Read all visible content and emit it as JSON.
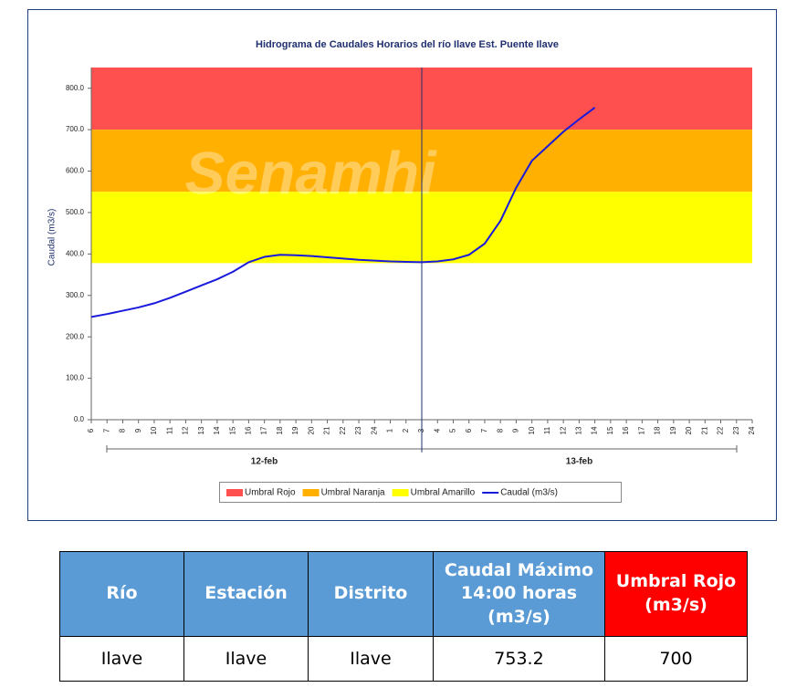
{
  "chart_data": {
    "type": "line",
    "title": "Hidrograma de Caudales Horarios del río Ilave Est. Puente  Ilave",
    "watermark": "Senamhi",
    "ylabel": "Caudal  (m3/s)",
    "categories": [
      "6",
      "7",
      "8",
      "9",
      "10",
      "11",
      "12",
      "13",
      "14",
      "15",
      "16",
      "17",
      "18",
      "19",
      "20",
      "21",
      "22",
      "23",
      "24",
      "1",
      "2",
      "3",
      "4",
      "5",
      "6",
      "7",
      "8",
      "9",
      "10",
      "11",
      "12",
      "13",
      "14",
      "15",
      "16",
      "17",
      "18",
      "19",
      "20",
      "21",
      "22",
      "23",
      "24"
    ],
    "day_labels": [
      "12-feb",
      "13-feb"
    ],
    "vline_index": 21,
    "series": [
      {
        "name": "Caudal (m3/s)",
        "color": "#1a1adc",
        "values": [
          248,
          255,
          263,
          271,
          281,
          294,
          309,
          324,
          339,
          357,
          380,
          393,
          398,
          397,
          395,
          392,
          389,
          386,
          384,
          382,
          381,
          380,
          382,
          387,
          398,
          425,
          480,
          560,
          625,
          660,
          695,
          725,
          753.2,
          null,
          null,
          null,
          null,
          null,
          null,
          null,
          null,
          null,
          null
        ]
      }
    ],
    "thresholds": [
      {
        "name": "Umbral Rojo",
        "color": "#ff5050",
        "from": 700,
        "to": 850
      },
      {
        "name": "Umbral Naranja",
        "color": "#ffb000",
        "from": 550,
        "to": 700
      },
      {
        "name": "Umbral Amarillo",
        "color": "#ffff00",
        "from": 378,
        "to": 550
      }
    ],
    "ylim": [
      0,
      850
    ],
    "yticks": [
      {
        "value": 0,
        "label": "0.0"
      },
      {
        "value": 100,
        "label": "100.0"
      },
      {
        "value": 200,
        "label": "200.0"
      },
      {
        "value": 300,
        "label": "300.0"
      },
      {
        "value": 400,
        "label": "400.0"
      },
      {
        "value": 500,
        "label": "500.0"
      },
      {
        "value": 600,
        "label": "600.0"
      },
      {
        "value": 700,
        "label": "700.0"
      },
      {
        "value": 800,
        "label": "800.0"
      }
    ]
  },
  "table": {
    "header": [
      "Río",
      "Estación",
      "Distrito",
      "Caudal Máximo 14:00 horas (m3/s)",
      "Umbral Rojo (m3/s)"
    ],
    "rows": [
      [
        "Ilave",
        "Ilave",
        "Ilave",
        "753.2",
        "700"
      ]
    ]
  }
}
